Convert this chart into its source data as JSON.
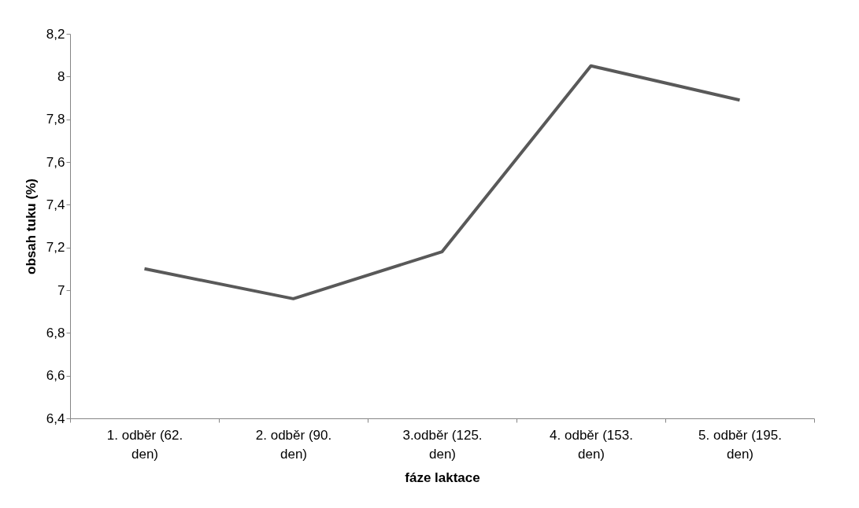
{
  "chart_data": {
    "type": "line",
    "xlabel": "fáze laktace",
    "ylabel": "obsah tuku (%)",
    "categories": [
      "1. odběr (62. den)",
      "2. odběr (90. den)",
      "3.odběr (125. den)",
      "4. odběr (153. den)",
      "5. odběr (195. den)"
    ],
    "series": [
      {
        "color": "#595959",
        "values": [
          7.1,
          6.96,
          7.18,
          8.05,
          7.89
        ]
      }
    ],
    "ylim": [
      6.4,
      8.2
    ],
    "yticks": [
      {
        "value": 6.4,
        "label": "6,4"
      },
      {
        "value": 6.6,
        "label": "6,6"
      },
      {
        "value": 6.8,
        "label": "6,8"
      },
      {
        "value": 7,
        "label": "7"
      },
      {
        "value": 7.2,
        "label": "7,2"
      },
      {
        "value": 7.4,
        "label": "7,4"
      },
      {
        "value": 7.6,
        "label": "7,6"
      },
      {
        "value": 7.8,
        "label": "7,8"
      },
      {
        "value": 8,
        "label": "8"
      },
      {
        "value": 8.2,
        "label": "8,2"
      }
    ],
    "grid": false
  }
}
